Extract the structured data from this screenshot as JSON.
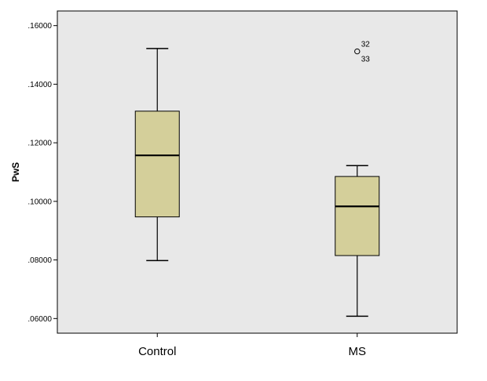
{
  "chart_data": {
    "type": "boxplot",
    "title": "",
    "xlabel": "",
    "ylabel": "PwS",
    "ylim": [
      0.055,
      0.165
    ],
    "yticks": [
      0.06,
      0.08,
      0.1,
      0.12,
      0.14,
      0.16
    ],
    "ytick_labels": [
      ".06000",
      ".08000",
      ".10000",
      ".12000",
      ".14000",
      ".16000"
    ],
    "grid": false,
    "plot_background": "#e8e8e8",
    "box_color": "#d4cf9a",
    "categories": [
      "Control",
      "MS"
    ],
    "boxes": [
      {
        "category": "Control",
        "whisker_low": 0.0798,
        "q1": 0.0947,
        "median": 0.1157,
        "q3": 0.1308,
        "whisker_high": 0.1522,
        "outliers": []
      },
      {
        "category": "MS",
        "whisker_low": 0.0608,
        "q1": 0.0815,
        "median": 0.0983,
        "q3": 0.1085,
        "whisker_high": 0.1122,
        "outliers": [
          {
            "value": 0.1512,
            "labels": [
              "32",
              "33"
            ]
          }
        ]
      }
    ]
  }
}
